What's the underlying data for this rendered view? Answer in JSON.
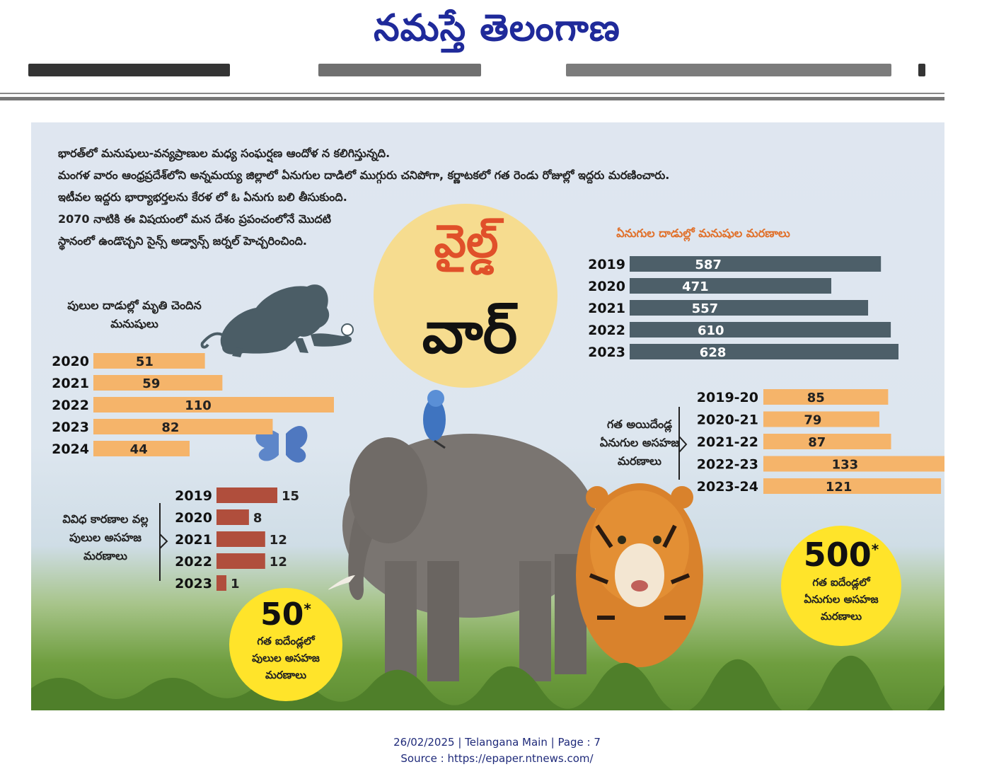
{
  "masthead": "నమస్తే తెలంగాణ",
  "intro": [
    "భారత్‌లో మనుషులు-వన్యప్రాణుల మధ్య సంఘర్షణ ఆందోళ న కలిగిస్తున్నది.",
    "మంగళ వారం ఆంధ్రప్రదేశ్‌లోని అన్నమయ్య జిల్లాలో ఏనుగుల దాడిలో ముగ్గురు చనిపోగా, కర్ణాటకలో గత రెండు రోజుల్లో ఇద్దరు మరణించారు.",
    "ఇటీవల ఇద్దరు భార్యాభర్తలను కేరళ లో ఓ ఏనుగు బలి తీసుకుంది.",
    "2070 నాటికి ఈ విషయంలో మన దేశం ప్రపంచంలోనే మొదటి",
    "స్థానంలో ఉండొచ్చని సైన్స్ అడ్వాన్స్ జర్నల్ హెచ్చరించింది."
  ],
  "headline": {
    "line1": "వైల్డ్",
    "line2": "వార్"
  },
  "colors": {
    "slate": "#4d5f69",
    "peach": "#f5b46a",
    "brick": "#b04e3c",
    "yellow": "#ffe42a"
  },
  "circles": {
    "tiger": {
      "value": "50",
      "star": "*",
      "lines": [
        "గత ఐదేండ్లలో",
        "పులుల అసహజ",
        "మరణాలు"
      ]
    },
    "elephant": {
      "value": "500",
      "star": "*",
      "lines": [
        "గత ఐదేండ్లలో",
        "ఏనుగుల అసహజ",
        "మరణాలు"
      ]
    }
  },
  "chart_data": [
    {
      "type": "bar",
      "orientation": "horizontal",
      "title": "ఏనుగుల దాడుల్లో మనుషుల మరణాలు",
      "categories": [
        "2019",
        "2020",
        "2021",
        "2022",
        "2023"
      ],
      "values": [
        587,
        471,
        557,
        610,
        628
      ],
      "color": "#4d5f69"
    },
    {
      "type": "bar",
      "orientation": "horizontal",
      "title": "పులుల దాడుల్లో మృతి చెందిన మనుషులు",
      "categories": [
        "2020",
        "2021",
        "2022",
        "2023",
        "2024"
      ],
      "values": [
        51,
        59,
        110,
        82,
        44
      ],
      "color": "#f5b46a"
    },
    {
      "type": "bar",
      "orientation": "horizontal",
      "title": "గత అయిదేండ్ల ఏనుగుల అసహజ మరణాలు",
      "categories": [
        "2019-20",
        "2020-21",
        "2021-22",
        "2022-23",
        "2023-24"
      ],
      "values": [
        85,
        79,
        87,
        133,
        121
      ],
      "color": "#f5b46a"
    },
    {
      "type": "bar",
      "orientation": "horizontal",
      "title": "వివిధ కారణాల వల్ల పులుల అసహజ మరణాలు",
      "categories": [
        "2019",
        "2020",
        "2021",
        "2022",
        "2023"
      ],
      "values": [
        15,
        8,
        12,
        12,
        1
      ],
      "color": "#b04e3c"
    }
  ],
  "footer": {
    "line1": "26/02/2025 | Telangana Main | Page : 7",
    "line2": "Source : https://epaper.ntnews.com/"
  }
}
